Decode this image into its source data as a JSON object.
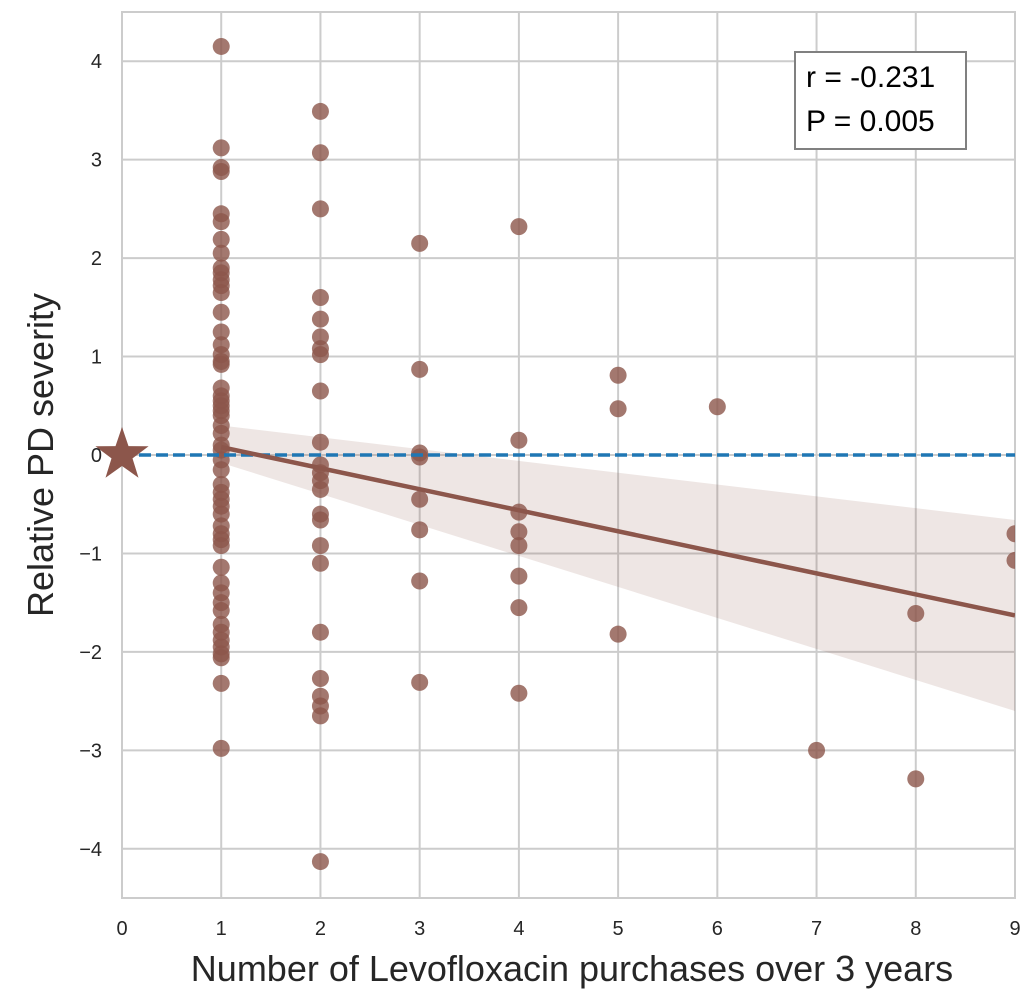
{
  "chart_data": {
    "type": "scatter",
    "title": "",
    "xlabel": "Number of Levofloxacin purchases over 3 years",
    "ylabel": "Relative PD severity",
    "xlim": [
      0,
      9
    ],
    "ylim": [
      -4.5,
      4.5
    ],
    "xticks": [
      0,
      1,
      2,
      3,
      4,
      5,
      6,
      7,
      8,
      9
    ],
    "yticks": [
      -4,
      -3,
      -2,
      -1,
      0,
      1,
      2,
      3,
      4
    ],
    "grid": true,
    "legend": "none",
    "annotation": {
      "lines": [
        "r = -0.231",
        "P = 0.005"
      ],
      "position": "top-right"
    },
    "reference_line": {
      "y": 0,
      "style": "dashed",
      "color": "#1f77b4"
    },
    "reference_marker": {
      "x": 0,
      "y": 0,
      "shape": "star",
      "color": "#8c564b"
    },
    "regression": {
      "x": [
        1,
        9
      ],
      "y": [
        0.08,
        -1.63
      ],
      "ci_lower": [
        -0.08,
        -2.6
      ],
      "ci_upper": [
        0.3,
        -0.66
      ],
      "color": "#8c564b"
    },
    "colors": {
      "points": "#8c564b",
      "ci_band": "#8c564b",
      "grid": "#cccccc"
    },
    "points": [
      [
        1,
        4.15
      ],
      [
        1,
        3.12
      ],
      [
        1,
        2.92
      ],
      [
        1,
        2.88
      ],
      [
        1,
        2.45
      ],
      [
        1,
        2.37
      ],
      [
        1,
        2.19
      ],
      [
        1,
        2.05
      ],
      [
        1,
        1.9
      ],
      [
        1,
        1.85
      ],
      [
        1,
        1.78
      ],
      [
        1,
        1.72
      ],
      [
        1,
        1.65
      ],
      [
        1,
        1.45
      ],
      [
        1,
        1.25
      ],
      [
        1,
        1.12
      ],
      [
        1,
        1.02
      ],
      [
        1,
        0.95
      ],
      [
        1,
        0.92
      ],
      [
        1,
        0.68
      ],
      [
        1,
        0.6
      ],
      [
        1,
        0.55
      ],
      [
        1,
        0.5
      ],
      [
        1,
        0.45
      ],
      [
        1,
        0.4
      ],
      [
        1,
        0.3
      ],
      [
        1,
        0.22
      ],
      [
        1,
        0.1
      ],
      [
        1,
        0.05
      ],
      [
        1,
        -0.05
      ],
      [
        1,
        -0.15
      ],
      [
        1,
        -0.3
      ],
      [
        1,
        -0.38
      ],
      [
        1,
        -0.45
      ],
      [
        1,
        -0.52
      ],
      [
        1,
        -0.6
      ],
      [
        1,
        -0.72
      ],
      [
        1,
        -0.8
      ],
      [
        1,
        -0.86
      ],
      [
        1,
        -0.92
      ],
      [
        1,
        -1.14
      ],
      [
        1,
        -1.3
      ],
      [
        1,
        -1.4
      ],
      [
        1,
        -1.5
      ],
      [
        1,
        -1.58
      ],
      [
        1,
        -1.72
      ],
      [
        1,
        -1.8
      ],
      [
        1,
        -1.88
      ],
      [
        1,
        -1.95
      ],
      [
        1,
        -2.02
      ],
      [
        1,
        -2.06
      ],
      [
        1,
        -2.32
      ],
      [
        1,
        -2.98
      ],
      [
        2,
        3.49
      ],
      [
        2,
        3.07
      ],
      [
        2,
        2.5
      ],
      [
        2,
        1.6
      ],
      [
        2,
        1.38
      ],
      [
        2,
        1.2
      ],
      [
        2,
        1.08
      ],
      [
        2,
        1.02
      ],
      [
        2,
        0.65
      ],
      [
        2,
        0.13
      ],
      [
        2,
        -0.1
      ],
      [
        2,
        -0.18
      ],
      [
        2,
        -0.26
      ],
      [
        2,
        -0.35
      ],
      [
        2,
        -0.6
      ],
      [
        2,
        -0.66
      ],
      [
        2,
        -0.92
      ],
      [
        2,
        -1.1
      ],
      [
        2,
        -1.8
      ],
      [
        2,
        -2.27
      ],
      [
        2,
        -2.45
      ],
      [
        2,
        -2.55
      ],
      [
        2,
        -2.65
      ],
      [
        2,
        -4.13
      ],
      [
        3,
        2.15
      ],
      [
        3,
        0.87
      ],
      [
        3,
        0.02
      ],
      [
        3,
        -0.02
      ],
      [
        3,
        -0.45
      ],
      [
        3,
        -0.76
      ],
      [
        3,
        -1.28
      ],
      [
        3,
        -2.31
      ],
      [
        4,
        2.32
      ],
      [
        4,
        0.15
      ],
      [
        4,
        -0.58
      ],
      [
        4,
        -0.78
      ],
      [
        4,
        -0.92
      ],
      [
        4,
        -1.23
      ],
      [
        4,
        -1.55
      ],
      [
        4,
        -2.42
      ],
      [
        5,
        0.81
      ],
      [
        5,
        0.47
      ],
      [
        5,
        -1.82
      ],
      [
        6,
        0.49
      ],
      [
        7,
        -3.0
      ],
      [
        8,
        -1.61
      ],
      [
        8,
        -3.29
      ],
      [
        9,
        -0.8
      ],
      [
        9,
        -1.07
      ]
    ]
  }
}
